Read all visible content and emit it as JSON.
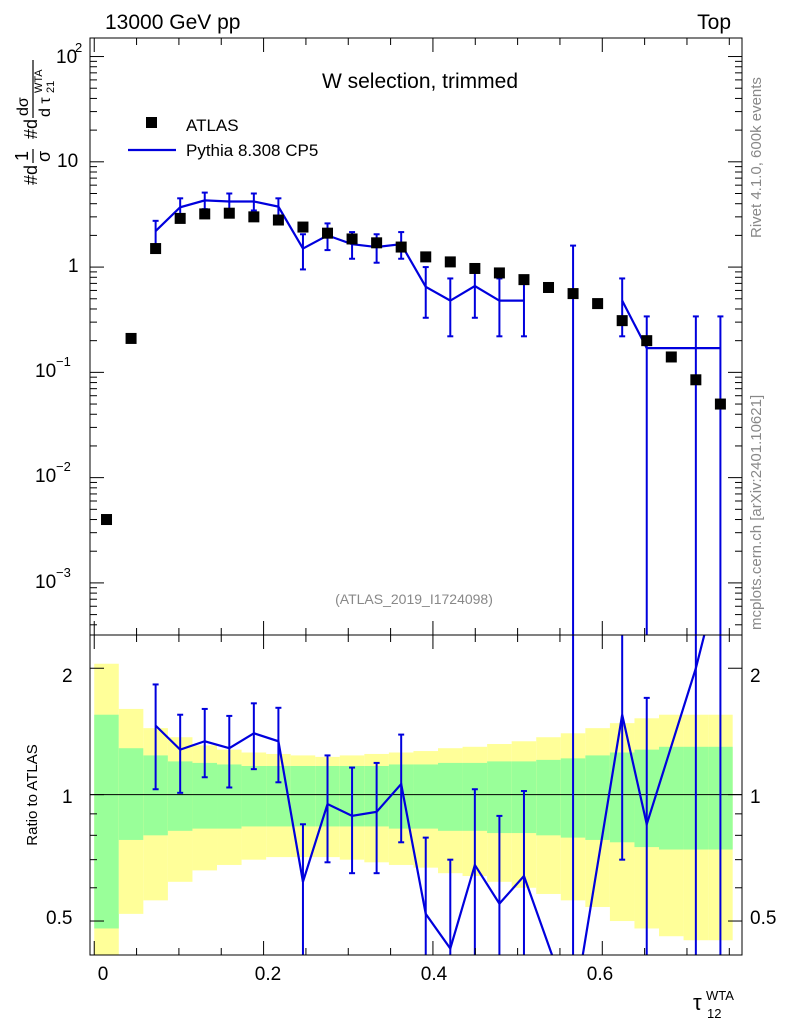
{
  "header": {
    "left": "13000 GeV pp",
    "right": "Top"
  },
  "main_panel": {
    "title": "W selection, trimmed",
    "ylabel_lines": [
      "#d",
      "1",
      "σ",
      "#d",
      "dσ",
      "d τ",
      "21",
      "WTA"
    ],
    "ytick_labels": [
      {
        "base": "10",
        "exp": "2"
      },
      {
        "base": "10",
        "exp": ""
      },
      {
        "base": "1",
        "exp": ""
      },
      {
        "base": "10",
        "exp": "−1"
      },
      {
        "base": "10",
        "exp": "−2"
      },
      {
        "base": "10",
        "exp": "−3"
      }
    ],
    "analysis_id": "(ATLAS_2019_I1724098)"
  },
  "ratio_panel": {
    "ylabel": "Ratio to ATLAS",
    "ytick_labels": [
      "2",
      "1",
      "0.5"
    ]
  },
  "xaxis": {
    "tick_labels": [
      "0",
      "0.2",
      "0.4",
      "0.6"
    ],
    "label_main": "τ",
    "label_sup": "WTA",
    "label_sub": "12"
  },
  "side_labels": {
    "rivet": "Rivet 4.1.0,  600k events",
    "mcplots": "mcplots.cern.ch [arXiv:2401.10621]"
  },
  "legend": {
    "data_label": "ATLAS",
    "mc_label": "Pythia 8.308 CP5"
  },
  "colors": {
    "mc": "#0000dd",
    "data": "#000000",
    "band_inner": "#99ff99",
    "band_outer": "#ffff99",
    "side_text": "#888888"
  },
  "chart_data": {
    "type": "scatter",
    "x_edges": [
      0.0,
      0.029,
      0.058,
      0.087,
      0.116,
      0.145,
      0.174,
      0.203,
      0.232,
      0.261,
      0.29,
      0.319,
      0.348,
      0.377,
      0.406,
      0.435,
      0.464,
      0.493,
      0.522,
      0.551,
      0.58,
      0.609,
      0.638,
      0.667,
      0.696,
      0.725,
      0.754
    ],
    "xlim": [
      -0.005,
      0.765
    ],
    "main_ylim": [
      0.00032,
      150
    ],
    "ratio_ylim": [
      0.415,
      2.4
    ],
    "atlas": {
      "name": "ATLAS",
      "x": [
        0.0145,
        0.0435,
        0.0725,
        0.1015,
        0.1305,
        0.1595,
        0.1885,
        0.2175,
        0.2465,
        0.2755,
        0.3045,
        0.3335,
        0.3625,
        0.3915,
        0.4205,
        0.4495,
        0.4785,
        0.5075,
        0.5365,
        0.5655,
        0.5945,
        0.6235,
        0.6525,
        0.6815,
        0.7105,
        0.7395
      ],
      "y": [
        0.004,
        0.21,
        1.5,
        2.9,
        3.2,
        3.25,
        3.0,
        2.8,
        2.4,
        2.1,
        1.85,
        1.7,
        1.55,
        1.25,
        1.12,
        0.97,
        0.88,
        0.76,
        0.64,
        0.56,
        0.45,
        0.31,
        0.2,
        0.14,
        0.085,
        0.05
      ]
    },
    "pythia": {
      "name": "Pythia 8.308 CP5",
      "y": [
        null,
        null,
        2.2,
        3.7,
        4.3,
        4.2,
        4.2,
        3.75,
        1.5,
        2.0,
        1.65,
        1.55,
        1.65,
        0.65,
        0.48,
        0.66,
        0.48,
        0.48,
        null,
        0.17,
        null,
        0.48,
        0.17,
        0.17,
        0.17,
        0.17
      ],
      "err_lo": [
        null,
        null,
        1.55,
        2.95,
        3.55,
        3.4,
        3.45,
        3.0,
        0.95,
        1.45,
        1.2,
        1.1,
        1.2,
        0.33,
        0.22,
        0.33,
        0.22,
        0.22,
        null,
        0.0001,
        null,
        0.22,
        0.0001,
        null,
        0.0001,
        0.0001
      ],
      "err_hi": [
        null,
        null,
        2.75,
        4.5,
        5.1,
        5.0,
        5.0,
        4.5,
        2.05,
        2.6,
        2.15,
        2.05,
        2.15,
        1.0,
        0.78,
        1.0,
        0.78,
        0.78,
        null,
        1.6,
        null,
        0.78,
        0.34,
        null,
        0.34,
        0.34
      ]
    },
    "ratio": {
      "values": [
        null,
        null,
        1.46,
        1.28,
        1.34,
        1.29,
        1.4,
        1.34,
        0.62,
        0.95,
        0.89,
        0.91,
        1.06,
        0.52,
        0.43,
        0.68,
        0.55,
        0.64,
        null,
        0.3,
        null,
        1.55,
        0.85,
        null,
        2.0,
        3.4
      ],
      "err_lo": [
        null,
        null,
        1.03,
        1.01,
        1.1,
        1.04,
        1.15,
        1.07,
        0.4,
        0.69,
        0.65,
        0.65,
        0.77,
        0.27,
        0.2,
        0.34,
        0.25,
        0.29,
        null,
        0.001,
        null,
        0.7,
        0.001,
        null,
        0.001,
        0.001
      ],
      "err_hi": [
        null,
        null,
        1.83,
        1.55,
        1.6,
        1.54,
        1.65,
        1.61,
        0.85,
        1.24,
        1.16,
        1.19,
        1.39,
        0.79,
        0.7,
        1.03,
        0.89,
        1.02,
        null,
        2.86,
        null,
        2.52,
        1.7,
        null,
        3.0,
        3.0
      ]
    },
    "band_inner": {
      "lo": [
        0.48,
        0.78,
        0.8,
        0.82,
        0.83,
        0.83,
        0.84,
        0.84,
        0.84,
        0.84,
        0.84,
        0.84,
        0.83,
        0.83,
        0.82,
        0.82,
        0.81,
        0.81,
        0.8,
        0.79,
        0.78,
        0.77,
        0.75,
        0.74,
        0.74,
        0.74
      ],
      "hi": [
        1.55,
        1.29,
        1.24,
        1.2,
        1.19,
        1.18,
        1.17,
        1.17,
        1.17,
        1.17,
        1.17,
        1.17,
        1.18,
        1.18,
        1.19,
        1.19,
        1.2,
        1.2,
        1.21,
        1.22,
        1.24,
        1.26,
        1.28,
        1.3,
        1.3,
        1.3
      ]
    },
    "band_outer": {
      "lo": [
        0.3,
        0.52,
        0.56,
        0.62,
        0.66,
        0.68,
        0.7,
        0.71,
        0.71,
        0.71,
        0.7,
        0.69,
        0.68,
        0.67,
        0.65,
        0.64,
        0.62,
        0.6,
        0.58,
        0.56,
        0.54,
        0.5,
        0.48,
        0.46,
        0.45,
        0.45
      ],
      "hi": [
        2.05,
        1.6,
        1.44,
        1.37,
        1.31,
        1.28,
        1.26,
        1.25,
        1.24,
        1.23,
        1.24,
        1.25,
        1.26,
        1.27,
        1.29,
        1.3,
        1.32,
        1.34,
        1.37,
        1.4,
        1.44,
        1.48,
        1.52,
        1.55,
        1.55,
        1.55
      ]
    }
  }
}
